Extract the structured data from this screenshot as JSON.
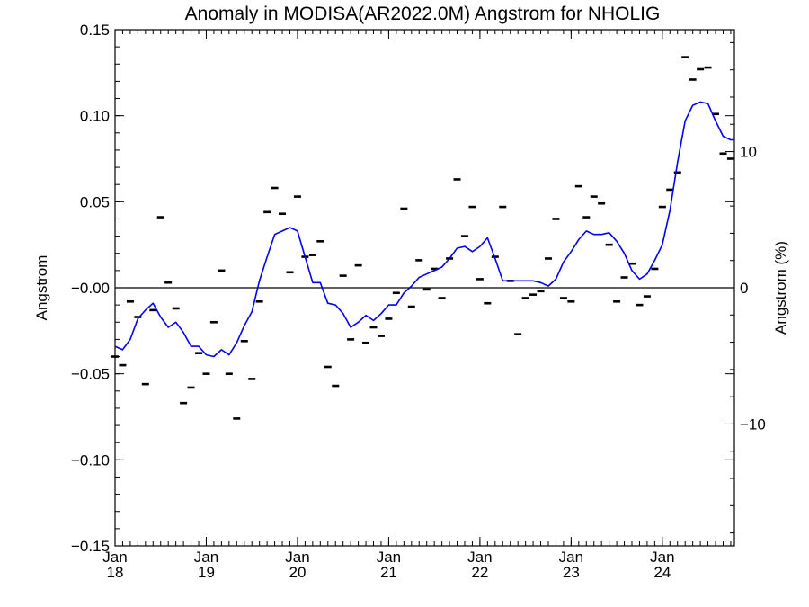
{
  "chart_data": {
    "type": "line",
    "title": "Anomaly in MODISA(AR2022.0M) Angstrom for NHOLIG",
    "ylabel": "Angstrom",
    "y2label": "Angstrom (%)",
    "ylim": [
      -0.15,
      0.15
    ],
    "y2lim": [
      -18.95,
      18.95
    ],
    "xlim": [
      2018.0,
      2024.79
    ],
    "yticks": [
      -0.15,
      -0.1,
      -0.05,
      0.0,
      0.05,
      0.1,
      0.15
    ],
    "ytick_labels": [
      "−0.15",
      "−0.10",
      "−0.05",
      "−0.00",
      "0.05",
      "0.10",
      "0.15"
    ],
    "y2ticks": [
      -10,
      0,
      10
    ],
    "y2tick_labels": [
      "−10",
      "0",
      "10"
    ],
    "xticks": [
      {
        "pos": 2018,
        "line1": "Jan",
        "line2": "18"
      },
      {
        "pos": 2019,
        "line1": "Jan",
        "line2": "19"
      },
      {
        "pos": 2020,
        "line1": "Jan",
        "line2": "20"
      },
      {
        "pos": 2021,
        "line1": "Jan",
        "line2": "21"
      },
      {
        "pos": 2022,
        "line1": "Jan",
        "line2": "22"
      },
      {
        "pos": 2023,
        "line1": "Jan",
        "line2": "23"
      },
      {
        "pos": 2024,
        "line1": "Jan",
        "line2": "24"
      }
    ],
    "grid": false,
    "legend": "none",
    "zero_line": 0,
    "colors": {
      "smoothed_line": "#0000ee",
      "monthly_marks": "#000000",
      "axes": "#000000"
    },
    "series": [
      {
        "role": "monthly anomaly",
        "style": "horizontal dash markers",
        "x": [
          2018.0,
          2018.083,
          2018.167,
          2018.25,
          2018.333,
          2018.417,
          2018.5,
          2018.583,
          2018.667,
          2018.75,
          2018.833,
          2018.917,
          2019.0,
          2019.083,
          2019.167,
          2019.25,
          2019.333,
          2019.417,
          2019.5,
          2019.583,
          2019.667,
          2019.75,
          2019.833,
          2019.917,
          2020.0,
          2020.083,
          2020.167,
          2020.25,
          2020.333,
          2020.417,
          2020.5,
          2020.583,
          2020.667,
          2020.75,
          2020.833,
          2020.917,
          2021.0,
          2021.083,
          2021.167,
          2021.25,
          2021.333,
          2021.417,
          2021.5,
          2021.583,
          2021.667,
          2021.75,
          2021.833,
          2021.917,
          2022.0,
          2022.083,
          2022.167,
          2022.25,
          2022.333,
          2022.417,
          2022.5,
          2022.583,
          2022.667,
          2022.75,
          2022.833,
          2022.917,
          2023.0,
          2023.083,
          2023.167,
          2023.25,
          2023.333,
          2023.417,
          2023.5,
          2023.583,
          2023.667,
          2023.75,
          2023.833,
          2023.917,
          2024.0,
          2024.083,
          2024.167,
          2024.25,
          2024.333,
          2024.417,
          2024.5,
          2024.583,
          2024.667,
          2024.75
        ],
        "values": [
          -0.04,
          -0.045,
          -0.008,
          -0.017,
          -0.056,
          -0.013,
          0.041,
          0.003,
          -0.012,
          -0.067,
          -0.058,
          -0.038,
          -0.05,
          -0.02,
          0.01,
          -0.05,
          -0.076,
          -0.031,
          -0.053,
          -0.008,
          0.044,
          0.058,
          0.043,
          0.009,
          0.053,
          0.018,
          0.019,
          0.027,
          -0.046,
          -0.057,
          0.007,
          -0.03,
          0.013,
          -0.032,
          -0.023,
          -0.028,
          -0.018,
          -0.003,
          0.046,
          -0.011,
          0.016,
          -0.001,
          0.011,
          -0.006,
          0.017,
          0.063,
          0.03,
          0.047,
          0.005,
          -0.009,
          0.018,
          0.047,
          0.004,
          -0.027,
          -0.006,
          -0.004,
          -0.002,
          0.017,
          0.04,
          -0.006,
          -0.008,
          0.059,
          0.041,
          0.053,
          0.049,
          0.025,
          -0.008,
          0.006,
          0.014,
          -0.01,
          -0.005,
          0.011,
          0.047,
          0.057,
          0.067,
          0.134,
          0.121,
          0.127,
          0.128,
          0.101,
          0.078,
          0.075
        ]
      },
      {
        "role": "running mean",
        "style": "blue line",
        "x": [
          2018.0,
          2018.083,
          2018.167,
          2018.25,
          2018.333,
          2018.417,
          2018.5,
          2018.583,
          2018.667,
          2018.75,
          2018.833,
          2018.917,
          2019.0,
          2019.083,
          2019.167,
          2019.25,
          2019.333,
          2019.417,
          2019.5,
          2019.583,
          2019.667,
          2019.75,
          2019.833,
          2019.917,
          2020.0,
          2020.083,
          2020.167,
          2020.25,
          2020.333,
          2020.417,
          2020.5,
          2020.583,
          2020.667,
          2020.75,
          2020.833,
          2020.917,
          2021.0,
          2021.083,
          2021.167,
          2021.25,
          2021.333,
          2021.417,
          2021.5,
          2021.583,
          2021.667,
          2021.75,
          2021.833,
          2021.917,
          2022.0,
          2022.083,
          2022.167,
          2022.25,
          2022.333,
          2022.417,
          2022.5,
          2022.583,
          2022.667,
          2022.75,
          2022.833,
          2022.917,
          2023.0,
          2023.083,
          2023.167,
          2023.25,
          2023.333,
          2023.417,
          2023.5,
          2023.583,
          2023.667,
          2023.75,
          2023.833,
          2023.917,
          2024.0,
          2024.083,
          2024.167,
          2024.25,
          2024.333,
          2024.417,
          2024.5,
          2024.583,
          2024.667,
          2024.75,
          2024.79
        ],
        "values": [
          -0.034,
          -0.036,
          -0.03,
          -0.018,
          -0.013,
          -0.009,
          -0.017,
          -0.023,
          -0.02,
          -0.026,
          -0.034,
          -0.034,
          -0.039,
          -0.04,
          -0.036,
          -0.039,
          -0.032,
          -0.022,
          -0.014,
          0.004,
          0.018,
          0.031,
          0.033,
          0.035,
          0.033,
          0.018,
          0.003,
          0.003,
          -0.009,
          -0.01,
          -0.015,
          -0.023,
          -0.02,
          -0.016,
          -0.019,
          -0.015,
          -0.01,
          -0.01,
          -0.003,
          0.001,
          0.006,
          0.008,
          0.01,
          0.012,
          0.017,
          0.023,
          0.024,
          0.021,
          0.024,
          0.029,
          0.017,
          0.004,
          0.004,
          0.004,
          0.004,
          0.004,
          0.003,
          0.001,
          0.005,
          0.015,
          0.021,
          0.028,
          0.033,
          0.031,
          0.031,
          0.032,
          0.027,
          0.02,
          0.01,
          0.005,
          0.008,
          0.016,
          0.025,
          0.045,
          0.073,
          0.097,
          0.106,
          0.108,
          0.107,
          0.097,
          0.088,
          0.086,
          0.086
        ]
      }
    ]
  }
}
